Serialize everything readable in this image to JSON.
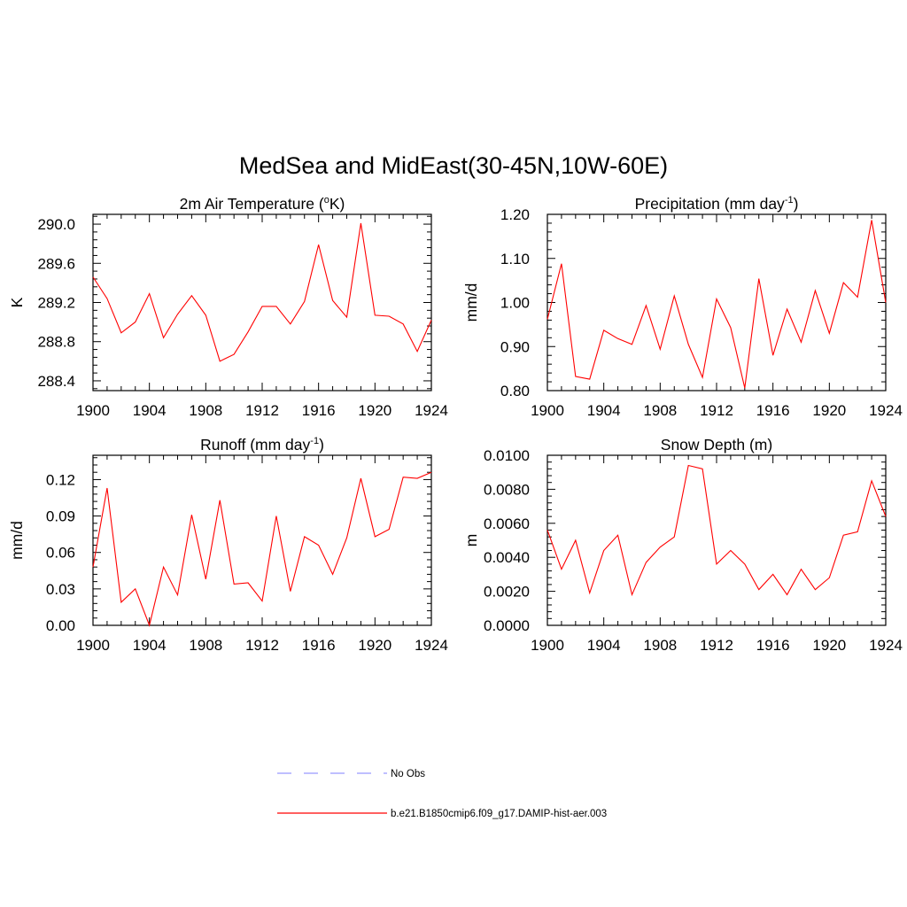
{
  "title": "MedSea and MidEast(30-45N,10W-60E)",
  "legend": [
    {
      "label": "No Obs",
      "color": "#9999ff",
      "style": "dashed"
    },
    {
      "label": "b.e21.B1850cmip6.f09_g17.DAMIP-hist-aer.003",
      "color": "#ff0000",
      "style": "solid"
    }
  ],
  "chart_data": [
    {
      "type": "line",
      "title_main": "2m Air Temperature (",
      "title_sup": "o",
      "title_tail": "K)",
      "ylabel": "K",
      "xlim": [
        1900,
        1924
      ],
      "ylim": [
        288.3,
        290.1
      ],
      "xticks": [
        "1900",
        "1904",
        "1908",
        "1912",
        "1916",
        "1920",
        "1924"
      ],
      "yticks": [
        "288.4",
        "288.8",
        "289.2",
        "289.6",
        "290.0"
      ],
      "x": [
        1900,
        1901,
        1902,
        1903,
        1904,
        1905,
        1906,
        1907,
        1908,
        1909,
        1910,
        1911,
        1912,
        1913,
        1914,
        1915,
        1916,
        1917,
        1918,
        1919,
        1920,
        1921,
        1922,
        1923,
        1924
      ],
      "series": [
        {
          "color": "#ff0000",
          "values": [
            289.46,
            289.24,
            288.89,
            289.0,
            289.29,
            288.84,
            289.08,
            289.27,
            289.07,
            288.6,
            288.67,
            288.9,
            289.16,
            289.16,
            288.98,
            289.21,
            289.79,
            289.22,
            289.05,
            290.01,
            289.07,
            289.06,
            288.98,
            288.7,
            289.02
          ]
        }
      ]
    },
    {
      "type": "line",
      "title_main": "Precipitation (mm day",
      "title_sup": "-1",
      "title_tail": ")",
      "ylabel": "mm/d",
      "xlim": [
        1900,
        1924
      ],
      "ylim": [
        0.8,
        1.2
      ],
      "xticks": [
        "1900",
        "1904",
        "1908",
        "1912",
        "1916",
        "1920",
        "1924"
      ],
      "yticks": [
        "0.80",
        "0.90",
        "1.00",
        "1.10",
        "1.20"
      ],
      "x": [
        1900,
        1901,
        1902,
        1903,
        1904,
        1905,
        1906,
        1907,
        1908,
        1909,
        1910,
        1911,
        1912,
        1913,
        1914,
        1915,
        1916,
        1917,
        1918,
        1919,
        1920,
        1921,
        1922,
        1923,
        1924
      ],
      "series": [
        {
          "color": "#ff0000",
          "values": [
            0.962,
            1.088,
            0.832,
            0.826,
            0.937,
            0.918,
            0.905,
            0.993,
            0.894,
            1.015,
            0.905,
            0.83,
            1.008,
            0.943,
            0.806,
            1.054,
            0.88,
            0.985,
            0.91,
            1.027,
            0.93,
            1.045,
            1.012,
            1.187,
            1.0
          ]
        }
      ]
    },
    {
      "type": "line",
      "title_main": "Runoff (mm day",
      "title_sup": "-1",
      "title_tail": ")",
      "ylabel": "mm/d",
      "xlim": [
        1900,
        1924
      ],
      "ylim": [
        0.0,
        0.14
      ],
      "xticks": [
        "1900",
        "1904",
        "1908",
        "1912",
        "1916",
        "1920",
        "1924"
      ],
      "yticks": [
        "0.00",
        "0.03",
        "0.06",
        "0.09",
        "0.12"
      ],
      "x": [
        1900,
        1901,
        1902,
        1903,
        1904,
        1905,
        1906,
        1907,
        1908,
        1909,
        1910,
        1911,
        1912,
        1913,
        1914,
        1915,
        1916,
        1917,
        1918,
        1919,
        1920,
        1921,
        1922,
        1923,
        1924
      ],
      "series": [
        {
          "color": "#ff0000",
          "values": [
            0.048,
            0.113,
            0.019,
            0.03,
            0.0,
            0.048,
            0.025,
            0.091,
            0.038,
            0.103,
            0.034,
            0.035,
            0.02,
            0.09,
            0.028,
            0.073,
            0.066,
            0.042,
            0.072,
            0.121,
            0.073,
            0.079,
            0.122,
            0.121,
            0.126
          ]
        }
      ]
    },
    {
      "type": "line",
      "title_main": "Snow Depth (m)",
      "title_sup": "",
      "title_tail": "",
      "ylabel": "m",
      "xlim": [
        1900,
        1924
      ],
      "ylim": [
        0.0,
        0.01
      ],
      "xticks": [
        "1900",
        "1904",
        "1908",
        "1912",
        "1916",
        "1920",
        "1924"
      ],
      "yticks": [
        "0.0000",
        "0.0020",
        "0.0040",
        "0.0060",
        "0.0080",
        "0.0100"
      ],
      "x": [
        1900,
        1901,
        1902,
        1903,
        1904,
        1905,
        1906,
        1907,
        1908,
        1909,
        1910,
        1911,
        1912,
        1913,
        1914,
        1915,
        1916,
        1917,
        1918,
        1919,
        1920,
        1921,
        1922,
        1923,
        1924
      ],
      "series": [
        {
          "color": "#ff0000",
          "values": [
            0.0056,
            0.0033,
            0.005,
            0.0019,
            0.0044,
            0.0053,
            0.0018,
            0.0037,
            0.0046,
            0.0052,
            0.0094,
            0.0092,
            0.0036,
            0.0044,
            0.0036,
            0.0021,
            0.003,
            0.0018,
            0.0033,
            0.0021,
            0.0028,
            0.0053,
            0.0055,
            0.0085,
            0.0064
          ]
        }
      ]
    }
  ]
}
